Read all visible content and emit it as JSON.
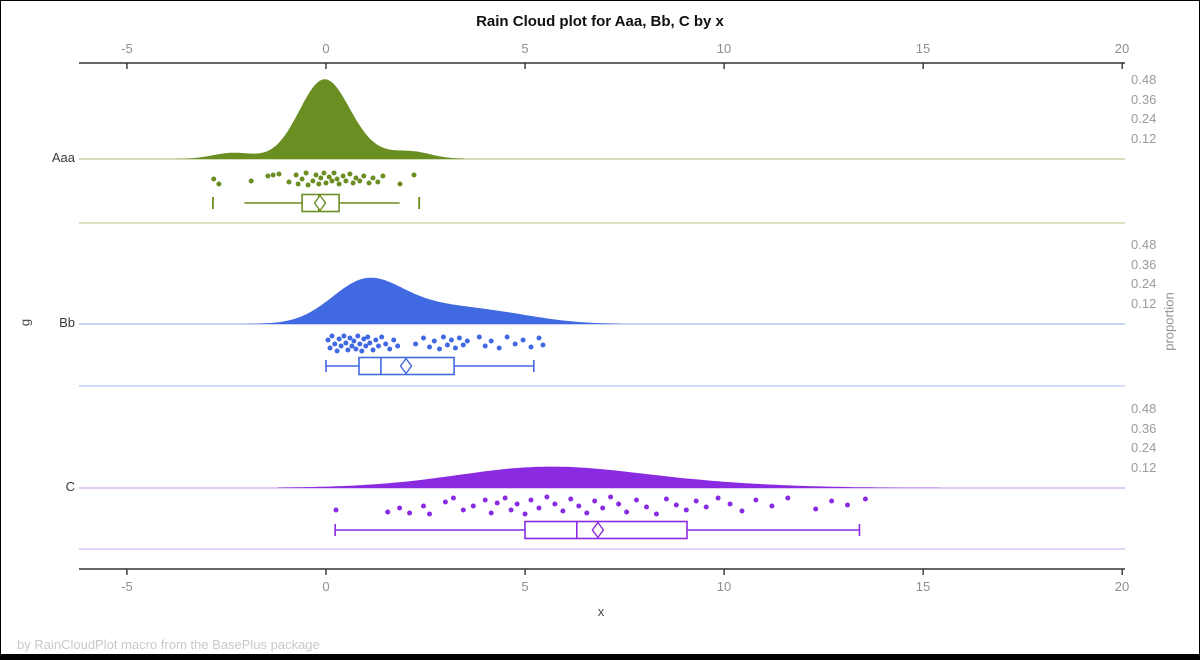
{
  "title": "Rain Cloud plot for Aaa, Bb, C by x",
  "footer": "by RainCloudPlot macro from the BasePlus package",
  "chart_data": {
    "type": "raincloud",
    "title": "Rain Cloud plot for Aaa, Bb, C by x",
    "xlabel": "x",
    "ylabel_left": "g",
    "ylabel_right": "proportion",
    "x_ticks": [
      -5,
      0,
      5,
      10,
      15,
      20
    ],
    "xlim": [
      -6.2,
      20.1
    ],
    "proportion_ticks": [
      0.48,
      0.36,
      0.24,
      0.12
    ],
    "axis_color": "#333333",
    "tick_label_color": "#8f8f8f",
    "groups": [
      {
        "name": "Aaa",
        "color": "#6b8e23",
        "light_color": "#c6d2a2",
        "density": [
          {
            "mu": -2.35,
            "sigma": 0.5,
            "amp": 6
          },
          {
            "mu": -0.05,
            "sigma": 0.62,
            "amp": 73
          },
          {
            "mu": 0.6,
            "sigma": 1.1,
            "amp": 8
          },
          {
            "mu": 2.2,
            "sigma": 0.45,
            "amp": 5
          }
        ],
        "density_span": [
          -3.8,
          3.5
        ],
        "box": {
          "lo": -2.05,
          "q1": -0.6,
          "median": -0.18,
          "q3": 0.33,
          "hi": 1.85,
          "mean": -0.15,
          "caps": false
        },
        "outliers": [
          -2.84,
          2.34
        ],
        "points": [
          [
            -2.82,
            20
          ],
          [
            -2.69,
            25
          ],
          [
            -1.88,
            22
          ],
          [
            -1.46,
            17
          ],
          [
            -1.33,
            16
          ],
          [
            -1.18,
            15
          ],
          [
            -0.93,
            23
          ],
          [
            -0.75,
            16
          ],
          [
            -0.7,
            25
          ],
          [
            -0.6,
            20
          ],
          [
            -0.5,
            14
          ],
          [
            -0.45,
            26
          ],
          [
            -0.33,
            22
          ],
          [
            -0.25,
            16
          ],
          [
            -0.18,
            25
          ],
          [
            -0.13,
            19
          ],
          [
            -0.05,
            14
          ],
          [
            0.0,
            24
          ],
          [
            0.08,
            18
          ],
          [
            0.15,
            22
          ],
          [
            0.2,
            14
          ],
          [
            0.28,
            20
          ],
          [
            0.33,
            25
          ],
          [
            0.43,
            17
          ],
          [
            0.5,
            22
          ],
          [
            0.6,
            15
          ],
          [
            0.68,
            24
          ],
          [
            0.75,
            19
          ],
          [
            0.85,
            22
          ],
          [
            0.95,
            17
          ],
          [
            1.08,
            24
          ],
          [
            1.18,
            19
          ],
          [
            1.3,
            23
          ],
          [
            1.43,
            17
          ],
          [
            1.86,
            25
          ],
          [
            2.21,
            16
          ]
        ]
      },
      {
        "name": "Bb",
        "color": "#4169e1",
        "light_color": "#b7c6f0",
        "density": [
          {
            "mu": 0.95,
            "sigma": 0.85,
            "amp": 36
          },
          {
            "mu": 2.2,
            "sigma": 1.2,
            "amp": 16
          },
          {
            "mu": 4.2,
            "sigma": 1.2,
            "amp": 10
          }
        ],
        "density_span": [
          -2.0,
          7.4
        ],
        "box": {
          "lo": 0.0,
          "q1": 0.83,
          "median": 1.38,
          "q3": 3.22,
          "hi": 5.22,
          "mean": 2.01,
          "caps": true
        },
        "outliers": [],
        "points": [
          [
            0.05,
            16
          ],
          [
            0.1,
            24
          ],
          [
            0.15,
            12
          ],
          [
            0.22,
            20
          ],
          [
            0.28,
            27
          ],
          [
            0.33,
            15
          ],
          [
            0.38,
            22
          ],
          [
            0.45,
            12
          ],
          [
            0.5,
            19
          ],
          [
            0.55,
            26
          ],
          [
            0.6,
            14
          ],
          [
            0.65,
            22
          ],
          [
            0.7,
            17
          ],
          [
            0.75,
            25
          ],
          [
            0.8,
            12
          ],
          [
            0.85,
            20
          ],
          [
            0.9,
            27
          ],
          [
            0.95,
            15
          ],
          [
            1.0,
            22
          ],
          [
            1.05,
            13
          ],
          [
            1.1,
            19
          ],
          [
            1.18,
            26
          ],
          [
            1.25,
            16
          ],
          [
            1.32,
            22
          ],
          [
            1.4,
            13
          ],
          [
            1.5,
            20
          ],
          [
            1.6,
            25
          ],
          [
            1.7,
            16
          ],
          [
            1.8,
            22
          ],
          [
            2.25,
            20
          ],
          [
            2.45,
            14
          ],
          [
            2.6,
            23
          ],
          [
            2.72,
            17
          ],
          [
            2.85,
            25
          ],
          [
            2.95,
            13
          ],
          [
            3.05,
            21
          ],
          [
            3.15,
            16
          ],
          [
            3.25,
            24
          ],
          [
            3.35,
            14
          ],
          [
            3.45,
            21
          ],
          [
            3.55,
            17
          ],
          [
            3.85,
            13
          ],
          [
            4.0,
            22
          ],
          [
            4.15,
            17
          ],
          [
            4.35,
            24
          ],
          [
            4.55,
            13
          ],
          [
            4.75,
            20
          ],
          [
            4.95,
            16
          ],
          [
            5.15,
            23
          ],
          [
            5.35,
            14
          ],
          [
            5.45,
            21
          ]
        ]
      },
      {
        "name": "C",
        "color": "#8a2be2",
        "light_color": "#d6baf2",
        "density": [
          {
            "mu": 5.3,
            "sigma": 2.0,
            "amp": 11
          },
          {
            "mu": 6.5,
            "sigma": 3.0,
            "amp": 11
          }
        ],
        "density_span": [
          -1.2,
          15.4
        ],
        "box": {
          "lo": 0.23,
          "q1": 5.0,
          "median": 6.3,
          "q3": 9.07,
          "hi": 13.4,
          "mean": 6.83,
          "caps": true
        },
        "outliers": [],
        "points": [
          [
            0.25,
            22
          ],
          [
            1.55,
            24
          ],
          [
            1.85,
            20
          ],
          [
            2.1,
            25
          ],
          [
            2.45,
            18
          ],
          [
            2.6,
            26
          ],
          [
            3.0,
            14
          ],
          [
            3.2,
            10
          ],
          [
            3.45,
            22
          ],
          [
            3.7,
            18
          ],
          [
            4.0,
            12
          ],
          [
            4.15,
            25
          ],
          [
            4.3,
            15
          ],
          [
            4.5,
            10
          ],
          [
            4.65,
            22
          ],
          [
            4.8,
            16
          ],
          [
            5.0,
            26
          ],
          [
            5.15,
            12
          ],
          [
            5.35,
            20
          ],
          [
            5.55,
            9
          ],
          [
            5.75,
            16
          ],
          [
            5.95,
            23
          ],
          [
            6.15,
            11
          ],
          [
            6.35,
            18
          ],
          [
            6.55,
            25
          ],
          [
            6.75,
            13
          ],
          [
            6.95,
            20
          ],
          [
            7.15,
            9
          ],
          [
            7.35,
            16
          ],
          [
            7.55,
            24
          ],
          [
            7.8,
            12
          ],
          [
            8.05,
            19
          ],
          [
            8.3,
            26
          ],
          [
            8.55,
            11
          ],
          [
            8.8,
            17
          ],
          [
            9.05,
            22
          ],
          [
            9.3,
            13
          ],
          [
            9.55,
            19
          ],
          [
            9.85,
            10
          ],
          [
            10.15,
            16
          ],
          [
            10.45,
            23
          ],
          [
            10.8,
            12
          ],
          [
            11.2,
            18
          ],
          [
            11.6,
            10
          ],
          [
            12.3,
            21
          ],
          [
            12.7,
            13
          ],
          [
            13.1,
            17
          ],
          [
            13.55,
            11
          ]
        ]
      }
    ]
  }
}
